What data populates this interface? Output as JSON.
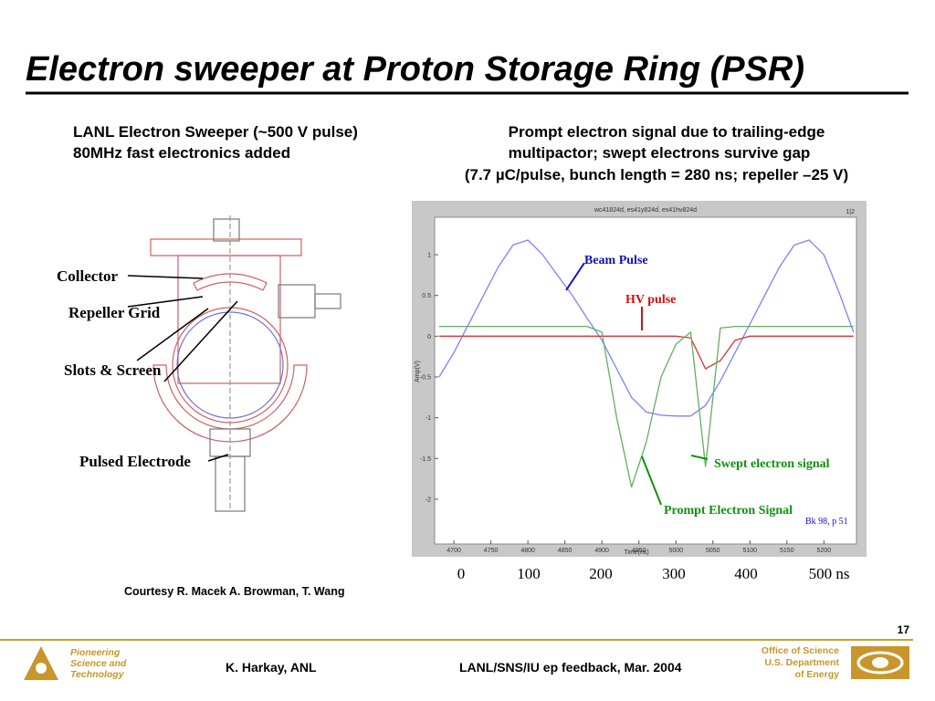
{
  "header": {
    "title": "Electron sweeper at Proton Storage Ring (PSR)"
  },
  "left_text": [
    "LANL Electron Sweeper (~500 V pulse)",
    "80MHz fast electronics added"
  ],
  "right_text": [
    "Prompt electron signal due to trailing-edge",
    "multipactor; swept electrons survive gap",
    "(7.7 µC/pulse, bunch length = 280 ns; repeller –25 V)"
  ],
  "diagram": {
    "labels": [
      "Collector",
      "Repeller Grid",
      "Slots & Screen",
      "Pulsed Electrode"
    ]
  },
  "courtesy": "Courtesy R. Macek A. Browman, T. Wang",
  "time_labels": [
    "0",
    "100",
    "200",
    "300",
    "400",
    "500 ns"
  ],
  "annotations": {
    "beam": "Beam Pulse",
    "hv": "HV pulse",
    "swept": "Swept electron signal",
    "prompt": "Prompt Electron Signal",
    "ref": "Bk 98, p 51"
  },
  "chart_data": {
    "type": "line",
    "title": "wc41824d, es41y824d, es41hv824d",
    "corner": "1|2",
    "x_label": "Time(ns)",
    "y_label": "Amp(V)",
    "x": [
      4680,
      4700,
      4720,
      4740,
      4760,
      4780,
      4800,
      4820,
      4840,
      4860,
      4880,
      4900,
      4920,
      4940,
      4960,
      4980,
      5000,
      5020,
      5040,
      5060,
      5080,
      5100,
      5120,
      5140,
      5160,
      5180,
      5200,
      5220,
      5240
    ],
    "series": [
      {
        "color": "#7f7fff",
        "values": [
          -0.5,
          -0.2,
          0.15,
          0.5,
          0.85,
          1.12,
          1.18,
          1.0,
          0.75,
          0.5,
          0.22,
          -0.05,
          -0.4,
          -0.75,
          -0.93,
          -0.97,
          -0.98,
          -0.98,
          -0.85,
          -0.55,
          -0.2,
          0.15,
          0.5,
          0.85,
          1.12,
          1.18,
          1.0,
          0.55,
          0.05
        ]
      },
      {
        "color": "#e03030",
        "values": [
          0,
          0,
          0,
          0,
          0,
          0,
          0,
          0,
          0,
          0,
          0,
          0,
          0,
          0,
          0,
          0,
          0,
          -0.02,
          -0.4,
          -0.3,
          -0.05,
          0,
          0,
          0,
          0,
          0,
          0,
          0,
          0
        ]
      },
      {
        "color": "#60b060",
        "values": [
          0.12,
          0.12,
          0.12,
          0.12,
          0.12,
          0.12,
          0.12,
          0.12,
          0.12,
          0.12,
          0.12,
          0.05,
          -1.0,
          -1.85,
          -1.3,
          -0.5,
          -0.1,
          0.05,
          -1.6,
          0.1,
          0.12,
          0.12,
          0.12,
          0.12,
          0.12,
          0.12,
          0.12,
          0.12,
          0.12
        ]
      }
    ],
    "xlim": [
      4674,
      5244
    ],
    "ylim": [
      -2.55,
      1.46
    ],
    "xticks": [
      4700,
      4750,
      4800,
      4850,
      4900,
      4950,
      5000,
      5050,
      5100,
      5150,
      5200
    ],
    "yticks": [
      1,
      0.5,
      0,
      -0.5,
      -1,
      -1.5,
      -2
    ]
  },
  "page_number": "17",
  "footer": {
    "lab": [
      "Pioneering",
      "Science and",
      "Technology"
    ],
    "author": "K. Harkay, ANL",
    "event": "LANL/SNS/IU ep feedback, Mar. 2004",
    "doe": [
      "Office of Science",
      "U.S. Department",
      "of Energy"
    ]
  }
}
